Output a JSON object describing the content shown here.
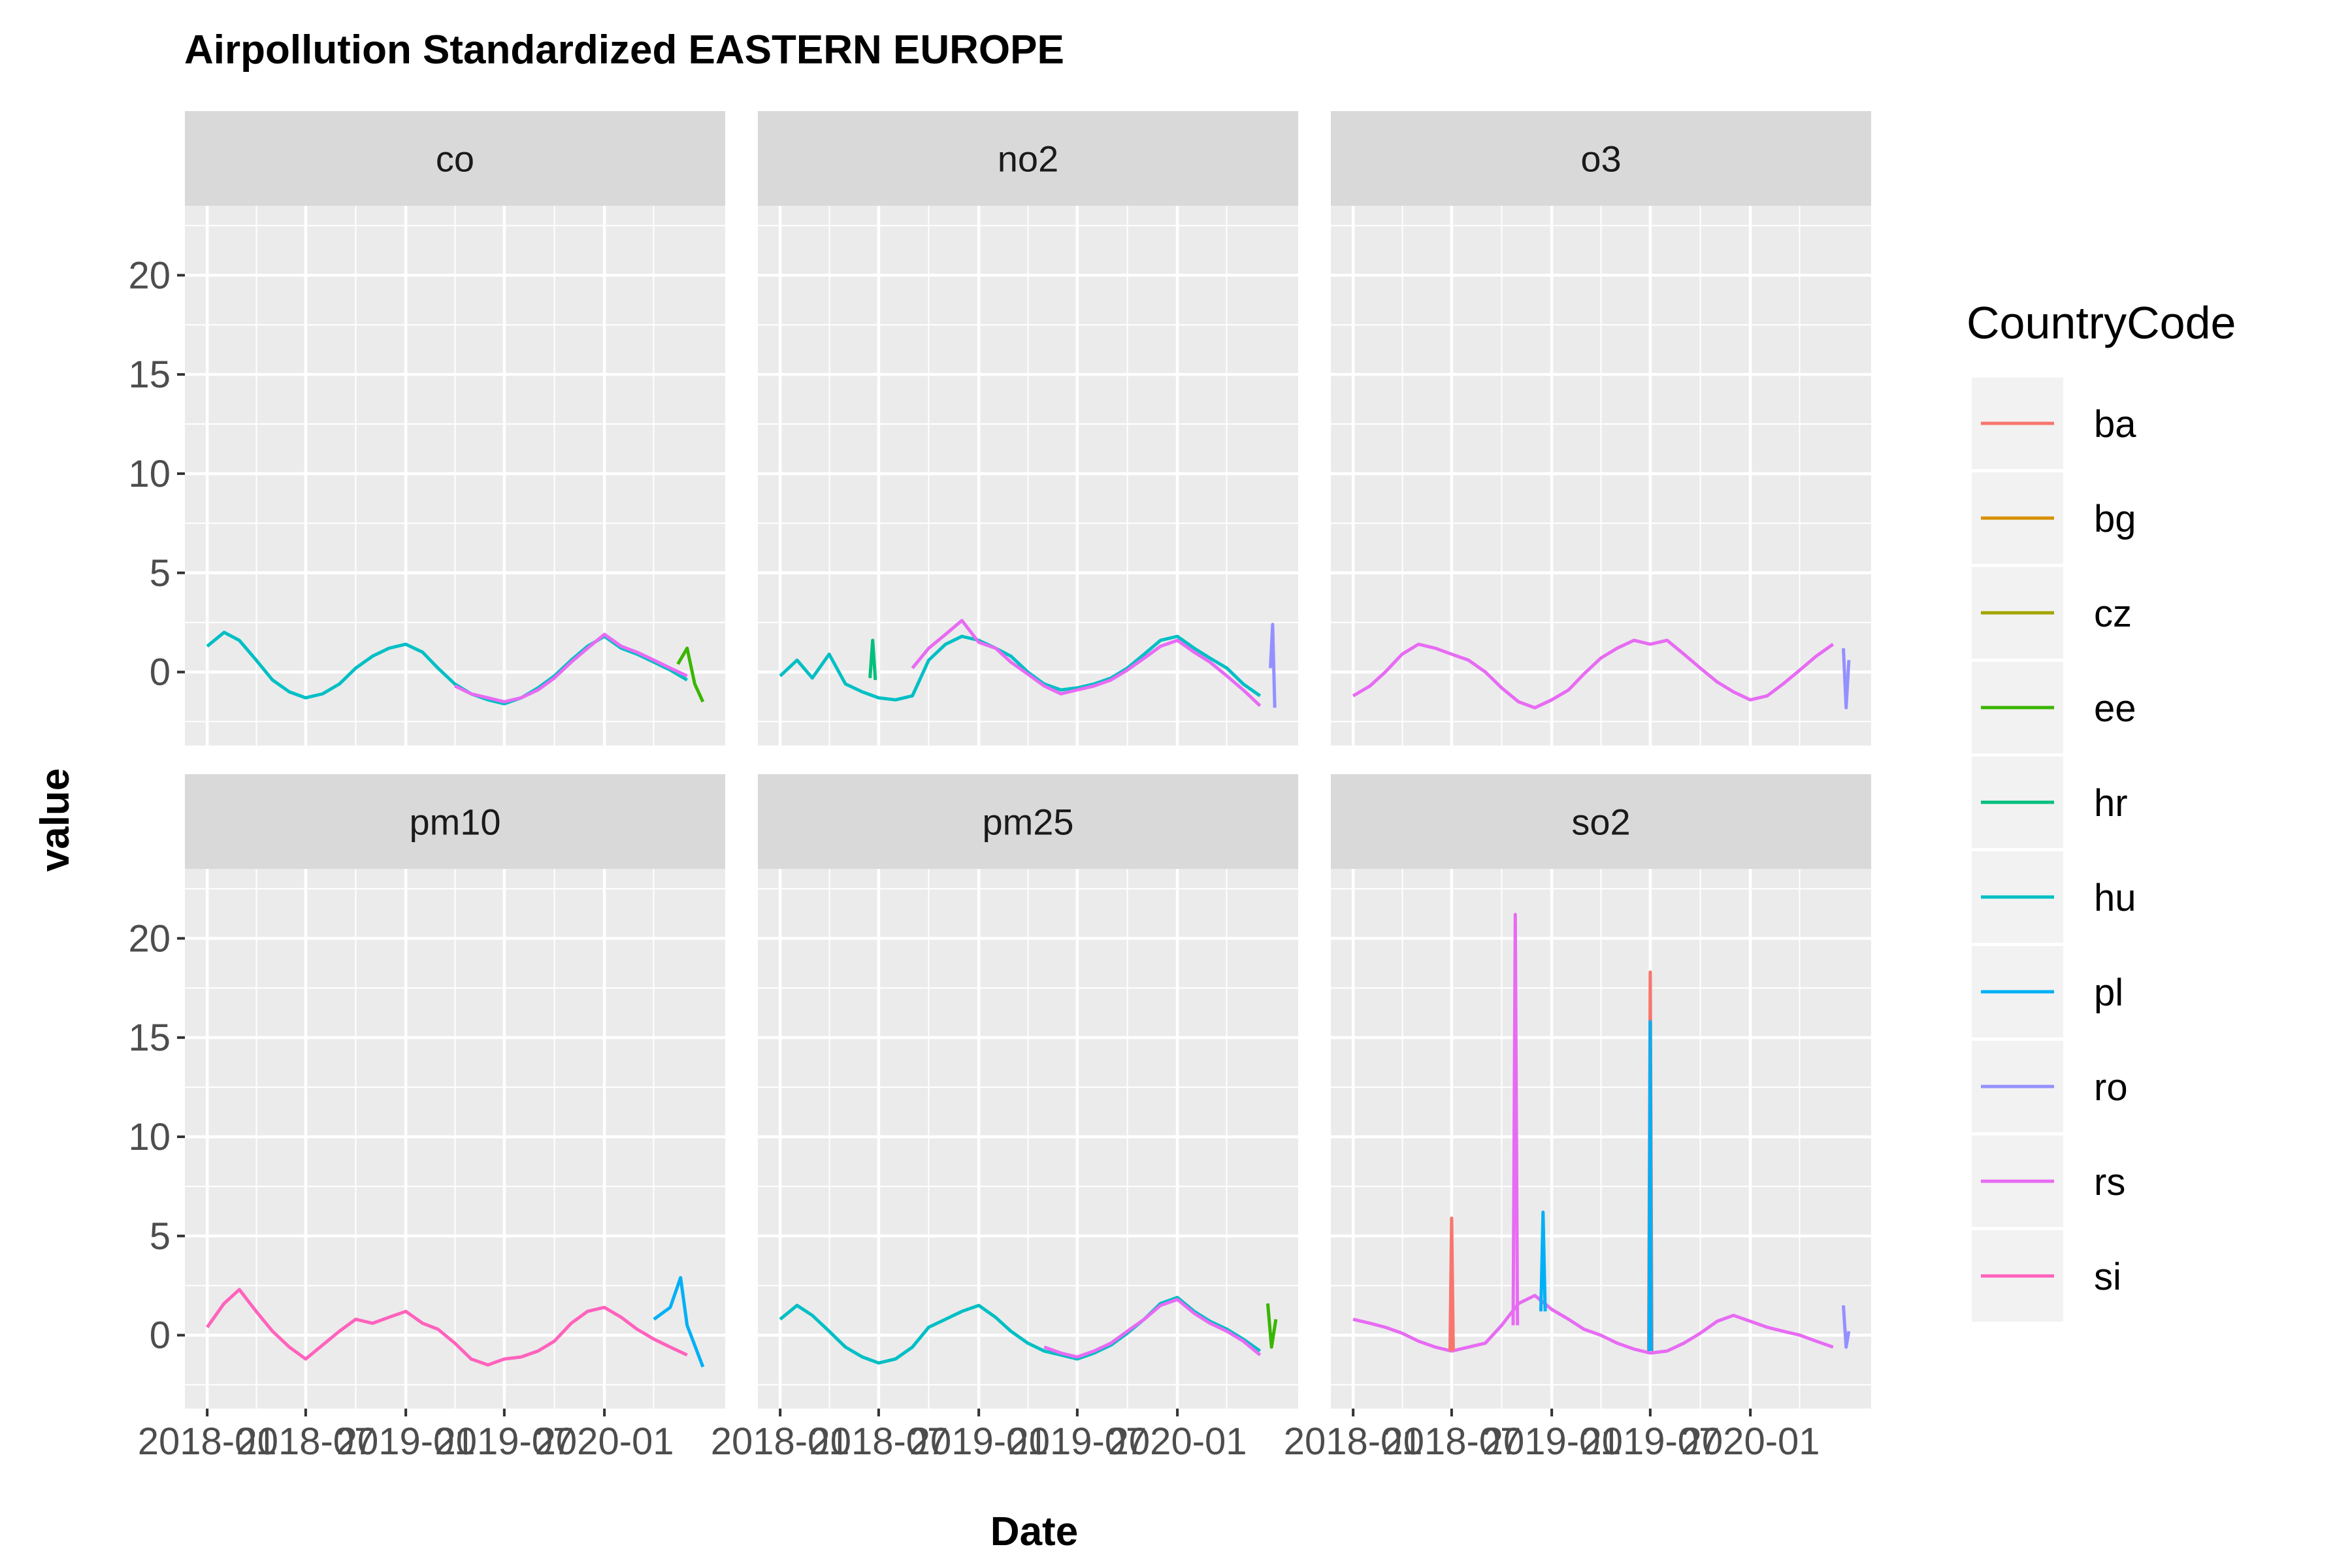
{
  "chart_data": {
    "type": "line",
    "title": "Airpollution Standardized EASTERN EUROPE",
    "xlabel": "Date",
    "ylabel": "value",
    "x_range": [
      "2018-01-01",
      "2020-06-30"
    ],
    "ylim": [
      -3.7,
      23.5
    ],
    "y_ticks": [
      0,
      5,
      10,
      15,
      20
    ],
    "x_ticks": [
      "2018-01",
      "2018-07",
      "2019-01",
      "2019-07",
      "2020-01"
    ],
    "x_ticks_note": "tick labels overlap in the original",
    "grid": true,
    "facet_layout": "3 columns x 2 rows",
    "legend_title": "CountryCode",
    "legend_position": "right",
    "series_colors": {
      "ba": "#F8766D",
      "bg": "#D89000",
      "cz": "#A3A500",
      "ee": "#39B600",
      "hr": "#00BF7D",
      "hu": "#00BFC4",
      "pl": "#00B0F6",
      "ro": "#9590FF",
      "rs": "#E76BF3",
      "si": "#FF62BC"
    },
    "panels": [
      {
        "name": "co",
        "series": [
          {
            "name": "hu",
            "x": [
              "2018-01-01",
              "2018-02-01",
              "2018-03-01",
              "2018-04-01",
              "2018-05-01",
              "2018-06-01",
              "2018-07-01",
              "2018-08-01",
              "2018-09-01",
              "2018-10-01",
              "2018-11-01",
              "2018-12-01",
              "2019-01-01",
              "2019-02-01",
              "2019-03-01",
              "2019-04-01",
              "2019-05-01",
              "2019-06-01",
              "2019-07-01",
              "2019-08-01",
              "2019-09-01",
              "2019-10-01",
              "2019-11-01",
              "2019-12-01",
              "2020-01-01",
              "2020-02-01",
              "2020-03-01",
              "2020-04-01",
              "2020-05-01",
              "2020-06-01"
            ],
            "y": [
              1.3,
              2.0,
              1.6,
              0.6,
              -0.4,
              -1.0,
              -1.3,
              -1.1,
              -0.6,
              0.2,
              0.8,
              1.2,
              1.4,
              1.0,
              0.2,
              -0.6,
              -1.1,
              -1.4,
              -1.6,
              -1.3,
              -0.8,
              -0.2,
              0.6,
              1.3,
              1.8,
              1.2,
              0.9,
              0.5,
              0.1,
              -0.4
            ]
          },
          {
            "name": "rs",
            "x": [
              "2019-04-01",
              "2019-05-01",
              "2019-06-01",
              "2019-07-01",
              "2019-08-01",
              "2019-09-01",
              "2019-10-01",
              "2019-11-01",
              "2019-12-01",
              "2020-01-01",
              "2020-02-01",
              "2020-03-01",
              "2020-04-01",
              "2020-05-01",
              "2020-06-01"
            ],
            "y": [
              -0.7,
              -1.1,
              -1.3,
              -1.5,
              -1.3,
              -0.9,
              -0.3,
              0.5,
              1.2,
              1.9,
              1.3,
              1.0,
              0.6,
              0.2,
              -0.2
            ]
          },
          {
            "name": "ee",
            "x": [
              "2020-05-15",
              "2020-06-01",
              "2020-06-15",
              "2020-06-30"
            ],
            "y": [
              0.4,
              1.2,
              -0.6,
              -1.5
            ]
          }
        ]
      },
      {
        "name": "no2",
        "series": [
          {
            "name": "hu",
            "x": [
              "2018-01-01",
              "2018-02-01",
              "2018-03-01",
              "2018-04-01",
              "2018-05-01",
              "2018-06-01",
              "2018-07-01",
              "2018-08-01",
              "2018-09-01",
              "2018-10-01",
              "2018-11-01",
              "2018-12-01",
              "2019-01-01",
              "2019-02-01",
              "2019-03-01",
              "2019-04-01",
              "2019-05-01",
              "2019-06-01",
              "2019-07-01",
              "2019-08-01",
              "2019-09-01",
              "2019-10-01",
              "2019-11-01",
              "2019-12-01",
              "2020-01-01",
              "2020-02-01",
              "2020-03-01",
              "2020-04-01",
              "2020-05-01",
              "2020-06-01"
            ],
            "y": [
              -0.2,
              0.6,
              -0.3,
              0.9,
              -0.6,
              -1.0,
              -1.3,
              -1.4,
              -1.2,
              0.6,
              1.4,
              1.8,
              1.6,
              1.2,
              0.8,
              0.0,
              -0.6,
              -0.9,
              -0.8,
              -0.6,
              -0.3,
              0.2,
              0.9,
              1.6,
              1.8,
              1.2,
              0.7,
              0.2,
              -0.6,
              -1.2
            ]
          },
          {
            "name": "rs",
            "x": [
              "2018-09-01",
              "2018-10-01",
              "2018-11-01",
              "2018-12-01",
              "2019-01-01",
              "2019-02-01",
              "2019-03-01",
              "2019-04-01",
              "2019-05-01",
              "2019-06-01",
              "2019-07-01",
              "2019-08-01",
              "2019-09-01",
              "2019-10-01",
              "2019-11-01",
              "2019-12-01",
              "2020-01-01",
              "2020-02-01",
              "2020-03-01",
              "2020-04-01",
              "2020-05-01",
              "2020-06-01"
            ],
            "y": [
              0.2,
              1.2,
              1.9,
              2.6,
              1.5,
              1.2,
              0.5,
              -0.1,
              -0.7,
              -1.1,
              -0.9,
              -0.7,
              -0.4,
              0.1,
              0.7,
              1.3,
              1.6,
              1.0,
              0.5,
              -0.2,
              -0.9,
              -1.7
            ]
          },
          {
            "name": "hr",
            "x": [
              "2018-06-15",
              "2018-06-20",
              "2018-06-25"
            ],
            "y": [
              -0.3,
              1.6,
              -0.4
            ]
          },
          {
            "name": "ro",
            "x": [
              "2020-06-20",
              "2020-06-24",
              "2020-06-28"
            ],
            "y": [
              0.2,
              2.4,
              -1.8
            ]
          }
        ]
      },
      {
        "name": "o3",
        "series": [
          {
            "name": "rs",
            "x": [
              "2018-01-01",
              "2018-02-01",
              "2018-03-01",
              "2018-04-01",
              "2018-05-01",
              "2018-06-01",
              "2018-07-01",
              "2018-08-01",
              "2018-09-01",
              "2018-10-01",
              "2018-11-01",
              "2018-12-01",
              "2019-01-01",
              "2019-02-01",
              "2019-03-01",
              "2019-04-01",
              "2019-05-01",
              "2019-06-01",
              "2019-07-01",
              "2019-08-01",
              "2019-09-01",
              "2019-10-01",
              "2019-11-01",
              "2019-12-01",
              "2020-01-01",
              "2020-02-01",
              "2020-03-01",
              "2020-04-01",
              "2020-05-01",
              "2020-06-01"
            ],
            "y": [
              -1.2,
              -0.7,
              0.0,
              0.9,
              1.4,
              1.2,
              0.9,
              0.6,
              0.0,
              -0.8,
              -1.5,
              -1.8,
              -1.4,
              -0.9,
              -0.1,
              0.7,
              1.2,
              1.6,
              1.4,
              1.6,
              0.9,
              0.2,
              -0.5,
              -1.0,
              -1.4,
              -1.2,
              -0.6,
              0.1,
              0.8,
              1.4
            ]
          },
          {
            "name": "ro",
            "x": [
              "2020-06-20",
              "2020-06-25",
              "2020-06-30"
            ],
            "y": [
              1.2,
              -1.8,
              0.6
            ]
          }
        ]
      },
      {
        "name": "pm10",
        "series": [
          {
            "name": "si",
            "x": [
              "2018-01-01",
              "2018-02-01",
              "2018-03-01",
              "2018-04-01",
              "2018-05-01",
              "2018-06-01",
              "2018-07-01",
              "2018-08-01",
              "2018-09-01",
              "2018-10-01",
              "2018-11-01",
              "2018-12-01",
              "2019-01-01",
              "2019-02-01",
              "2019-03-01",
              "2019-04-01",
              "2019-05-01",
              "2019-06-01",
              "2019-07-01",
              "2019-08-01",
              "2019-09-01",
              "2019-10-01",
              "2019-11-01",
              "2019-12-01",
              "2020-01-01",
              "2020-02-01",
              "2020-03-01",
              "2020-04-01",
              "2020-05-01",
              "2020-06-01"
            ],
            "y": [
              0.4,
              1.6,
              2.3,
              1.2,
              0.2,
              -0.6,
              -1.2,
              -0.5,
              0.2,
              0.8,
              0.6,
              0.9,
              1.2,
              0.6,
              0.3,
              -0.4,
              -1.2,
              -1.5,
              -1.2,
              -1.1,
              -0.8,
              -0.3,
              0.6,
              1.2,
              1.4,
              0.9,
              0.3,
              -0.2,
              -0.6,
              -1.0
            ]
          },
          {
            "name": "pl",
            "x": [
              "2020-04-01",
              "2020-05-01",
              "2020-05-20",
              "2020-06-01",
              "2020-06-30"
            ],
            "y": [
              0.8,
              1.4,
              2.9,
              0.5,
              -1.6
            ]
          }
        ]
      },
      {
        "name": "pm25",
        "series": [
          {
            "name": "hu",
            "x": [
              "2018-01-01",
              "2018-02-01",
              "2018-03-01",
              "2018-04-01",
              "2018-05-01",
              "2018-06-01",
              "2018-07-01",
              "2018-08-01",
              "2018-09-01",
              "2018-10-01",
              "2018-11-01",
              "2018-12-01",
              "2019-01-01",
              "2019-02-01",
              "2019-03-01",
              "2019-04-01",
              "2019-05-01",
              "2019-06-01",
              "2019-07-01",
              "2019-08-01",
              "2019-09-01",
              "2019-10-01",
              "2019-11-01",
              "2019-12-01",
              "2020-01-01",
              "2020-02-01",
              "2020-03-01",
              "2020-04-01",
              "2020-05-01",
              "2020-06-01"
            ],
            "y": [
              0.8,
              1.5,
              1.0,
              0.2,
              -0.6,
              -1.1,
              -1.4,
              -1.2,
              -0.6,
              0.4,
              0.8,
              1.2,
              1.5,
              0.9,
              0.2,
              -0.4,
              -0.8,
              -1.0,
              -1.2,
              -0.9,
              -0.5,
              0.1,
              0.8,
              1.6,
              1.9,
              1.2,
              0.7,
              0.3,
              -0.2,
              -0.8
            ]
          },
          {
            "name": "rs",
            "x": [
              "2019-05-01",
              "2019-06-01",
              "2019-07-01",
              "2019-08-01",
              "2019-09-01",
              "2019-10-01",
              "2019-11-01",
              "2019-12-01",
              "2020-01-01",
              "2020-02-01",
              "2020-03-01",
              "2020-04-01",
              "2020-05-01",
              "2020-06-01"
            ],
            "y": [
              -0.6,
              -0.9,
              -1.1,
              -0.8,
              -0.4,
              0.2,
              0.8,
              1.5,
              1.8,
              1.1,
              0.6,
              0.2,
              -0.3,
              -1.0
            ]
          },
          {
            "name": "ee",
            "x": [
              "2020-06-15",
              "2020-06-22",
              "2020-06-30"
            ],
            "y": [
              1.6,
              -0.6,
              0.8
            ]
          }
        ]
      },
      {
        "name": "so2",
        "series": [
          {
            "name": "rs",
            "x": [
              "2018-01-01",
              "2018-02-01",
              "2018-03-01",
              "2018-04-01",
              "2018-05-01",
              "2018-06-01",
              "2018-07-01",
              "2018-08-01",
              "2018-09-01",
              "2018-10-01",
              "2018-11-01",
              "2018-12-01",
              "2019-01-01",
              "2019-02-01",
              "2019-03-01",
              "2019-04-01",
              "2019-05-01",
              "2019-06-01",
              "2019-07-01",
              "2019-08-01",
              "2019-09-01",
              "2019-10-01",
              "2019-11-01",
              "2019-12-01",
              "2020-01-01",
              "2020-02-01",
              "2020-03-01",
              "2020-04-01",
              "2020-05-01",
              "2020-06-01"
            ],
            "y": [
              0.8,
              0.6,
              0.4,
              0.1,
              -0.3,
              -0.6,
              -0.8,
              -0.6,
              -0.4,
              0.5,
              1.6,
              2.0,
              1.3,
              0.8,
              0.3,
              0.0,
              -0.4,
              -0.7,
              -0.9,
              -0.8,
              -0.4,
              0.1,
              0.7,
              1.0,
              0.7,
              0.4,
              0.2,
              0.0,
              -0.3,
              -0.6
            ]
          },
          {
            "name": "ba",
            "x": [
              "2018-06-28",
              "2018-07-01",
              "2018-07-04"
            ],
            "y": [
              -0.8,
              5.9,
              -0.8
            ]
          },
          {
            "name": "rs",
            "x": [
              "2018-10-22",
              "2018-10-26",
              "2018-10-30"
            ],
            "y": [
              0.5,
              21.2,
              0.5
            ]
          },
          {
            "name": "pl",
            "x": [
              "2018-12-12",
              "2018-12-16",
              "2018-12-20"
            ],
            "y": [
              1.2,
              6.2,
              1.2
            ]
          },
          {
            "name": "ba",
            "x": [
              "2019-06-28",
              "2019-07-01",
              "2019-07-04"
            ],
            "y": [
              -0.8,
              18.3,
              -0.8
            ]
          },
          {
            "name": "pl",
            "x": [
              "2019-06-29",
              "2019-07-01",
              "2019-07-03"
            ],
            "y": [
              -0.8,
              15.8,
              -0.8
            ]
          },
          {
            "name": "ro",
            "x": [
              "2020-06-20",
              "2020-06-25",
              "2020-06-30"
            ],
            "y": [
              1.5,
              -0.6,
              0.2
            ]
          }
        ]
      }
    ]
  }
}
